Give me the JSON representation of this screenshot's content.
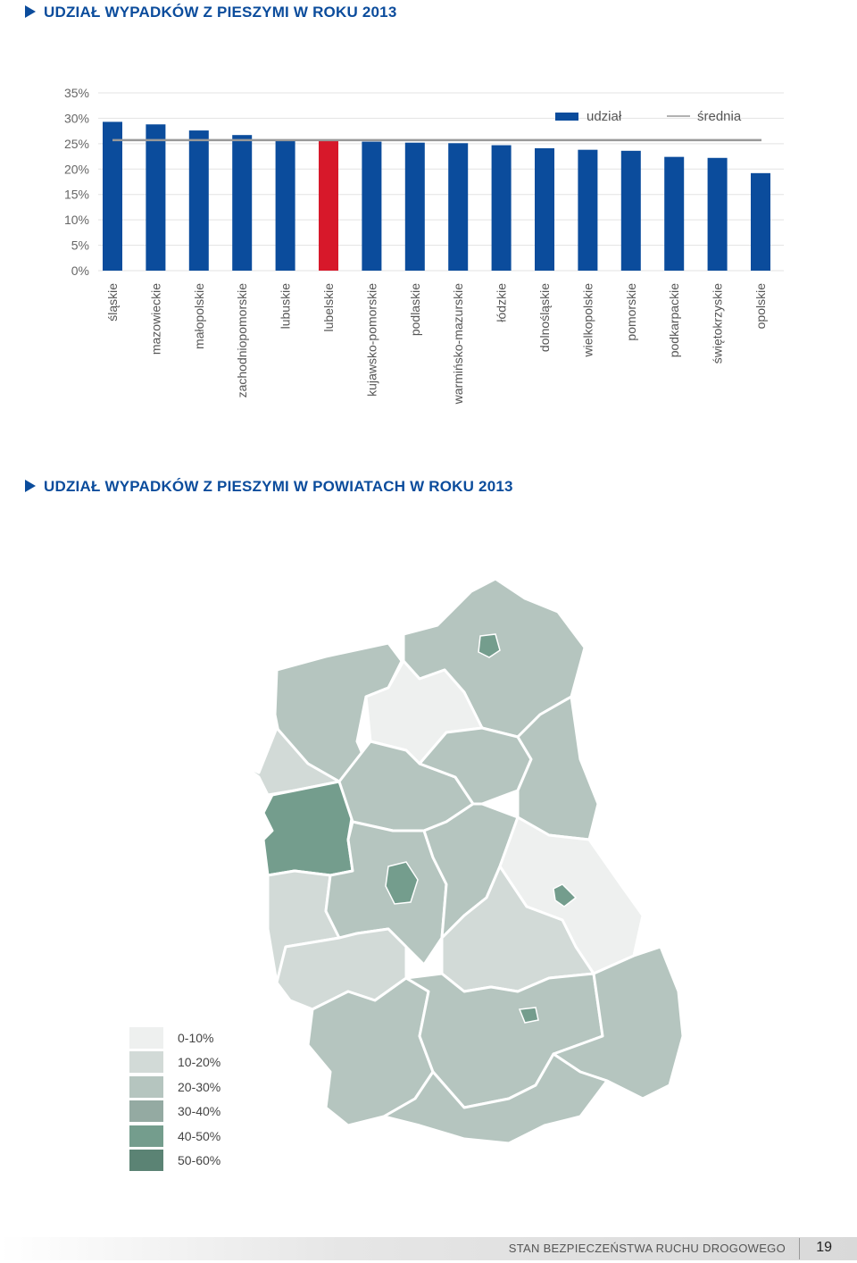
{
  "sections": {
    "chart_title": "UDZIAŁ WYPADKÓW Z PIESZYMI W ROKU 2013",
    "map_title": "UDZIAŁ WYPADKÓW Z PIESZYMI W POWIATACH W ROKU 2013"
  },
  "chart_data": {
    "type": "bar",
    "title": "UDZIAŁ WYPADKÓW Z PIESZYMI W ROKU 2013",
    "xlabel": "",
    "ylabel": "",
    "ylim": [
      0,
      35
    ],
    "yticks": [
      0,
      5,
      10,
      15,
      20,
      25,
      30,
      35
    ],
    "ytick_labels": [
      "0%",
      "5%",
      "10%",
      "15%",
      "20%",
      "25%",
      "30%",
      "35%"
    ],
    "grid": true,
    "legend_position": "top-right",
    "categories": [
      "śląskie",
      "mazowieckie",
      "małopolskie",
      "zachodniopomorskie",
      "lubuskie",
      "lubelskie",
      "kujawsko-pomorskie",
      "podlaskie",
      "warmińsko-mazurskie",
      "łódzkie",
      "dolnośląskie",
      "wielkopolskie",
      "pomorskie",
      "podkarpackie",
      "świętokrzyskie",
      "opolskie"
    ],
    "series": [
      {
        "name": "udział",
        "color": "#0b4c9c",
        "highlight_color": "#d7182a",
        "highlight_index": 5,
        "values": [
          29.3,
          28.8,
          27.6,
          26.7,
          25.6,
          25.6,
          25.4,
          25.2,
          25.1,
          24.7,
          24.1,
          23.8,
          23.6,
          22.4,
          22.2,
          19.2
        ]
      },
      {
        "name": "średnia",
        "color": "#999999",
        "value": 25.7
      }
    ]
  },
  "map": {
    "palette": {
      "0-10%": "#eef0ef",
      "10-20%": "#d2dad7",
      "20-30%": "#b5c5bf",
      "30-40%": "#94aaa2",
      "40-50%": "#749d8d",
      "50-60%": "#5b8374"
    }
  },
  "legend": {
    "items": [
      {
        "label": "0-10%",
        "color": "#eef0ef"
      },
      {
        "label": "10-20%",
        "color": "#d2dad7"
      },
      {
        "label": "20-30%",
        "color": "#b5c5bf"
      },
      {
        "label": "30-40%",
        "color": "#94aaa2"
      },
      {
        "label": "40-50%",
        "color": "#749d8d"
      },
      {
        "label": "50-60%",
        "color": "#5b8374"
      }
    ]
  },
  "footer": {
    "text": "STAN BEZPIECZEŃSTWA RUCHU DROGOWEGO",
    "page_number": "19"
  }
}
